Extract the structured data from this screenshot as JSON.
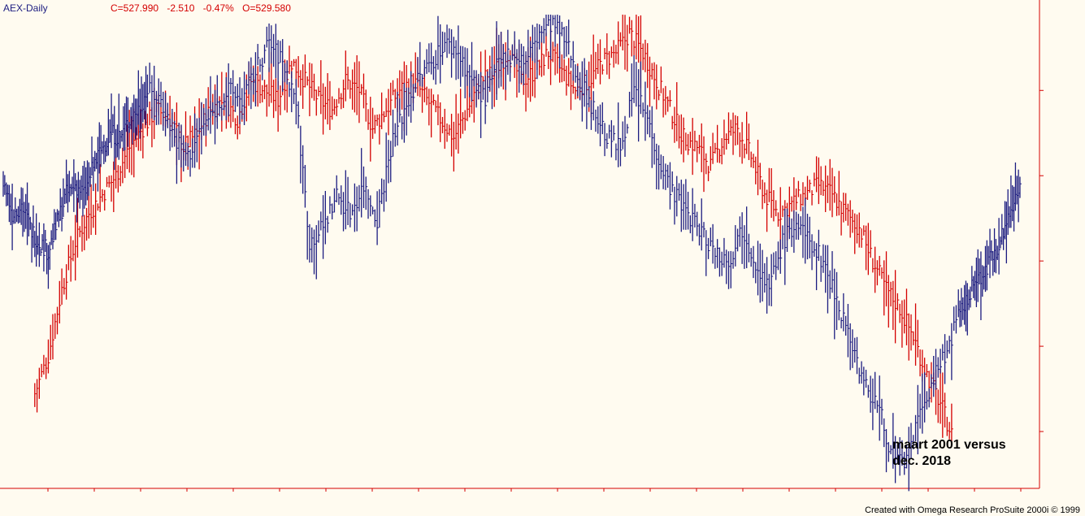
{
  "header": {
    "symbol": "AEX-Daily",
    "close": "C=527.990",
    "change": "-2.510",
    "change_pct": "-0.47%",
    "open": "O=529.580"
  },
  "annotation": {
    "line1": "maart 2001 versus",
    "line2": "dec. 2018"
  },
  "footer": "Created with Omega Research ProSuite 2000i © 1999",
  "colors": {
    "background": "#fffbf0",
    "axis": "#d40000",
    "series_2018": "#1c1c80",
    "series_2001": "#d40000"
  },
  "chart_data": {
    "type": "bar",
    "subtype": "ohlc-overlay",
    "description_visible": "Two overlaid daily price-bar series with no printed price scale labels",
    "ylim": [
      0,
      100
    ],
    "xlim": [
      0,
      230
    ],
    "grid": false,
    "series": [
      {
        "key": "blue",
        "color": "#1c1c80",
        "x": [
          0,
          2,
          4,
          6,
          8,
          10,
          12,
          14,
          16,
          18,
          20,
          22,
          24,
          26,
          28,
          30,
          32,
          35,
          38,
          41,
          44,
          47,
          50,
          53,
          56,
          59,
          62,
          65,
          68,
          71,
          74,
          77,
          80,
          83,
          86,
          89,
          92,
          95,
          98,
          101,
          104,
          107,
          110,
          113,
          116,
          119,
          122,
          125,
          128,
          131,
          134,
          137,
          140,
          143,
          146,
          149,
          152,
          155,
          158,
          161,
          164,
          167,
          170,
          173,
          176,
          179,
          182,
          185,
          188,
          191,
          194,
          197,
          200,
          203,
          206,
          209,
          212,
          214,
          216,
          218,
          220,
          222,
          224,
          226
        ],
        "close": [
          65,
          58,
          60,
          55,
          52,
          50,
          56,
          62,
          64,
          62,
          68,
          72,
          75,
          74,
          78,
          80,
          84,
          82,
          74,
          70,
          76,
          80,
          84,
          82,
          88,
          94,
          90,
          82,
          52,
          55,
          62,
          58,
          64,
          57,
          72,
          80,
          86,
          90,
          94,
          92,
          86,
          82,
          90,
          92,
          90,
          96,
          98,
          94,
          86,
          80,
          74,
          72,
          84,
          78,
          68,
          62,
          58,
          54,
          50,
          48,
          55,
          48,
          42,
          52,
          56,
          52,
          48,
          40,
          32,
          22,
          18,
          8,
          4,
          14,
          22,
          28,
          36,
          40,
          44,
          46,
          50,
          54,
          60,
          66
        ]
      },
      {
        "key": "red",
        "color": "#d40000",
        "x": [
          7,
          10,
          13,
          16,
          19,
          22,
          25,
          28,
          31,
          34,
          37,
          40,
          43,
          46,
          49,
          52,
          55,
          58,
          61,
          64,
          67,
          70,
          73,
          76,
          79,
          82,
          85,
          88,
          91,
          94,
          97,
          100,
          103,
          106,
          109,
          112,
          115,
          118,
          121,
          124,
          127,
          130,
          133,
          136,
          139,
          142,
          145,
          148,
          151,
          154,
          157,
          160,
          163,
          166,
          169,
          172,
          175,
          178,
          181,
          184,
          187,
          190,
          193,
          196,
          199,
          202,
          205,
          208,
          211
        ],
        "close": [
          20,
          28,
          42,
          52,
          58,
          62,
          66,
          72,
          76,
          80,
          78,
          72,
          75,
          80,
          82,
          78,
          86,
          84,
          82,
          90,
          86,
          82,
          80,
          86,
          84,
          76,
          80,
          84,
          86,
          82,
          78,
          74,
          80,
          86,
          88,
          92,
          86,
          88,
          92,
          88,
          84,
          86,
          90,
          92,
          96,
          92,
          86,
          80,
          74,
          72,
          68,
          74,
          76,
          70,
          62,
          58,
          60,
          62,
          64,
          62,
          58,
          55,
          48,
          42,
          38,
          32,
          24,
          18,
          10
        ]
      }
    ]
  }
}
